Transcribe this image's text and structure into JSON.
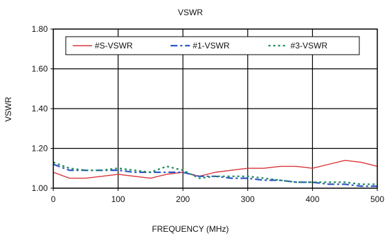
{
  "chart_data": {
    "type": "line",
    "title": "VSWR",
    "xlabel": "FREQUENCY (MHz)",
    "ylabel": "VSWR",
    "xlim": [
      0,
      500
    ],
    "ylim": [
      1.0,
      1.8
    ],
    "xticks": [
      0,
      100,
      200,
      300,
      400,
      500
    ],
    "xtick_labels": [
      "0",
      "100",
      "200",
      "300",
      "400",
      "500"
    ],
    "yticks": [
      1.0,
      1.2,
      1.4,
      1.6,
      1.8
    ],
    "ytick_labels": [
      "1.00",
      "1.20",
      "1.40",
      "1.60",
      "1.80"
    ],
    "grid": true,
    "legend_position": "top",
    "series": [
      {
        "name": "#S-VSWR",
        "color": "#d9353a",
        "dash": "solid",
        "x": [
          0,
          25,
          50,
          75,
          100,
          125,
          150,
          175,
          200,
          225,
          250,
          275,
          300,
          325,
          350,
          375,
          400,
          425,
          450,
          475,
          500
        ],
        "y": [
          1.08,
          1.05,
          1.05,
          1.06,
          1.07,
          1.06,
          1.05,
          1.07,
          1.08,
          1.06,
          1.08,
          1.09,
          1.1,
          1.1,
          1.11,
          1.11,
          1.1,
          1.12,
          1.14,
          1.13,
          1.11
        ]
      },
      {
        "name": "#1-VSWR",
        "color": "#2a56c6",
        "dash": "dashdot",
        "x": [
          0,
          25,
          50,
          75,
          100,
          125,
          150,
          175,
          200,
          225,
          250,
          275,
          300,
          325,
          350,
          375,
          400,
          425,
          450,
          475,
          500
        ],
        "y": [
          1.12,
          1.09,
          1.09,
          1.09,
          1.09,
          1.08,
          1.08,
          1.08,
          1.08,
          1.06,
          1.06,
          1.05,
          1.05,
          1.04,
          1.04,
          1.03,
          1.03,
          1.02,
          1.02,
          1.01,
          1.01
        ]
      },
      {
        "name": "#3-VSWR",
        "color": "#1e8a5a",
        "dash": "dotted",
        "x": [
          0,
          25,
          50,
          75,
          100,
          125,
          150,
          175,
          200,
          225,
          250,
          275,
          300,
          325,
          350,
          375,
          400,
          425,
          450,
          475,
          500
        ],
        "y": [
          1.13,
          1.1,
          1.09,
          1.09,
          1.1,
          1.09,
          1.08,
          1.11,
          1.09,
          1.05,
          1.06,
          1.06,
          1.06,
          1.05,
          1.04,
          1.03,
          1.03,
          1.03,
          1.03,
          1.02,
          1.02
        ]
      }
    ]
  }
}
